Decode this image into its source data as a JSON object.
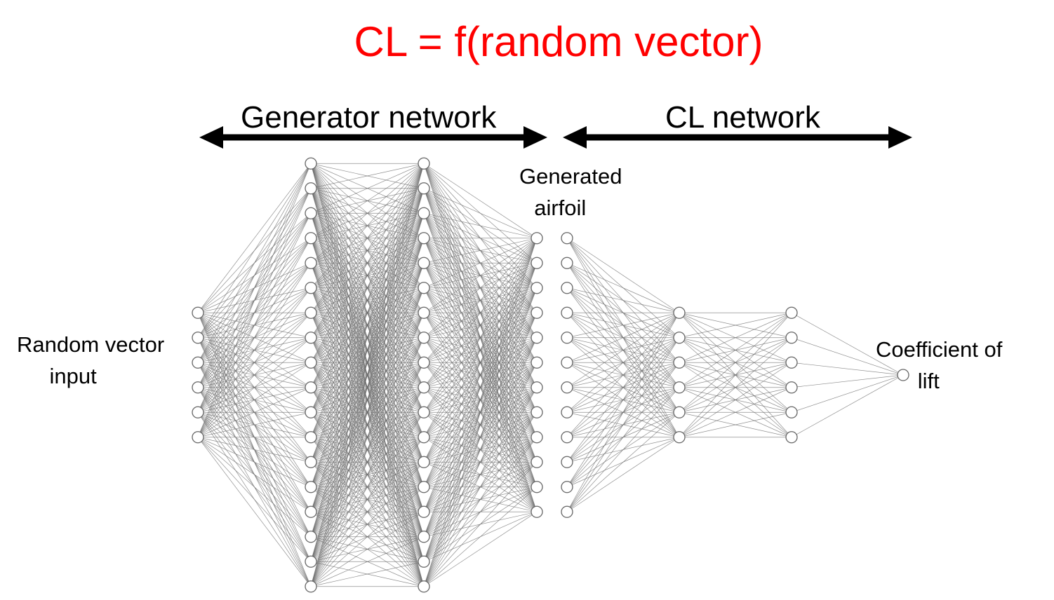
{
  "colors": {
    "title": "#ff0000",
    "text": "#000000",
    "node_stroke": "#666666",
    "edge": "#6b6b6b",
    "arrow": "#000000"
  },
  "title": "CL = f(random vector)",
  "sections": {
    "generator": "Generator network",
    "cl": "CL network"
  },
  "labels": {
    "input_line1": "Random vector",
    "input_line2": "input",
    "airfoil_line1": "Generated",
    "airfoil_line2": "airfoil",
    "output_line1": "Coefficient of",
    "output_line2": "lift"
  },
  "networks": {
    "generator": {
      "layers": [
        {
          "name": "random-vector-input",
          "nodes": 6
        },
        {
          "name": "generator-hidden-1",
          "nodes": 18
        },
        {
          "name": "generator-hidden-2",
          "nodes": 18
        },
        {
          "name": "generated-airfoil-output",
          "nodes": 12
        }
      ]
    },
    "cl": {
      "layers": [
        {
          "name": "airfoil-input",
          "nodes": 12
        },
        {
          "name": "cl-hidden-1",
          "nodes": 6
        },
        {
          "name": "cl-hidden-2",
          "nodes": 6
        },
        {
          "name": "coefficient-of-lift-output",
          "nodes": 1
        }
      ]
    }
  }
}
